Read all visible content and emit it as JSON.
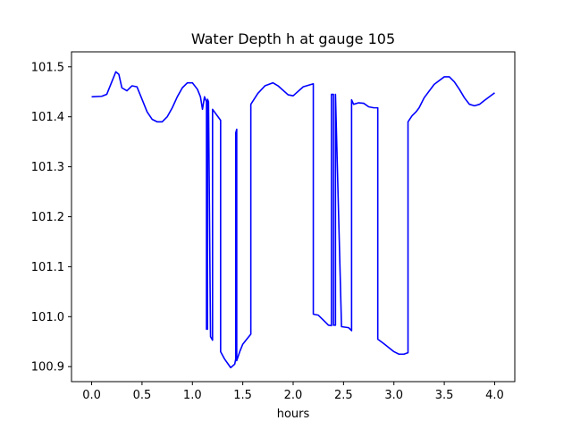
{
  "chart_data": {
    "type": "line",
    "title": "Water Depth h at gauge 105",
    "xlabel": "hours",
    "ylabel": "",
    "xlim": [
      -0.2,
      4.2
    ],
    "ylim": [
      100.87,
      101.53
    ],
    "xticks": [
      0.0,
      0.5,
      1.0,
      1.5,
      2.0,
      2.5,
      3.0,
      3.5,
      4.0
    ],
    "xtick_labels": [
      "0.0",
      "0.5",
      "1.0",
      "1.5",
      "2.0",
      "2.5",
      "3.0",
      "3.5",
      "4.0"
    ],
    "yticks": [
      100.9,
      101.0,
      101.1,
      101.2,
      101.3,
      101.4,
      101.5
    ],
    "ytick_labels": [
      "100.9",
      "101.0",
      "101.1",
      "101.2",
      "101.3",
      "101.4",
      "101.5"
    ],
    "grid": false,
    "series": [
      {
        "color": "#0000ff",
        "x": [
          0.0,
          0.1,
          0.15,
          0.2,
          0.24,
          0.27,
          0.3,
          0.35,
          0.4,
          0.45,
          0.5,
          0.55,
          0.6,
          0.65,
          0.7,
          0.75,
          0.8,
          0.85,
          0.9,
          0.95,
          1.0,
          1.05,
          1.08,
          1.1,
          1.12,
          1.14,
          1.14,
          1.15,
          1.15,
          1.16,
          1.18,
          1.18,
          1.2,
          1.2,
          1.28,
          1.28,
          1.32,
          1.38,
          1.42,
          1.43,
          1.43,
          1.44,
          1.44,
          1.47,
          1.5,
          1.58,
          1.58,
          1.65,
          1.72,
          1.8,
          1.85,
          1.95,
          2.0,
          2.1,
          2.2,
          2.2,
          2.25,
          2.3,
          2.35,
          2.38,
          2.38,
          2.4,
          2.4,
          2.42,
          2.42,
          2.48,
          2.55,
          2.58,
          2.58,
          2.6,
          2.65,
          2.7,
          2.75,
          2.8,
          2.84,
          2.84,
          2.9,
          3.0,
          3.05,
          3.1,
          3.14,
          3.14,
          3.18,
          3.22,
          3.25,
          3.3,
          3.4,
          3.5,
          3.55,
          3.6,
          3.65,
          3.7,
          3.75,
          3.8,
          3.85,
          3.9,
          4.0
        ],
        "y": [
          101.44,
          101.441,
          101.445,
          101.47,
          101.49,
          101.485,
          101.458,
          101.452,
          101.462,
          101.46,
          101.435,
          101.41,
          101.395,
          101.39,
          101.39,
          101.4,
          101.418,
          101.44,
          101.458,
          101.468,
          101.468,
          101.455,
          101.44,
          101.415,
          101.44,
          101.43,
          100.975,
          100.975,
          101.435,
          101.43,
          100.96,
          100.96,
          100.953,
          101.415,
          101.393,
          100.93,
          100.915,
          100.898,
          100.905,
          100.915,
          101.368,
          101.375,
          100.912,
          100.93,
          100.945,
          100.965,
          101.425,
          101.447,
          101.462,
          101.468,
          101.462,
          101.444,
          101.442,
          101.46,
          101.466,
          101.005,
          101.003,
          100.993,
          100.983,
          100.982,
          101.445,
          101.445,
          100.983,
          100.983,
          101.445,
          100.98,
          100.978,
          100.972,
          101.434,
          101.425,
          101.428,
          101.427,
          101.42,
          101.418,
          101.418,
          100.955,
          100.946,
          100.93,
          100.925,
          100.925,
          100.928,
          101.39,
          101.402,
          101.41,
          101.418,
          101.438,
          101.465,
          101.48,
          101.48,
          101.47,
          101.455,
          101.438,
          101.425,
          101.422,
          101.425,
          101.433,
          101.448
        ]
      }
    ]
  }
}
